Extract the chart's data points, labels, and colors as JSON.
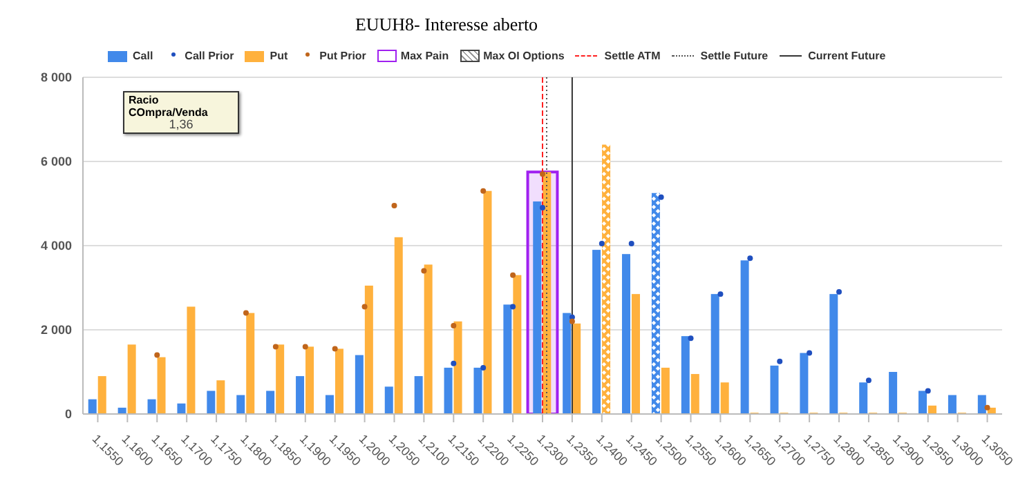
{
  "chart_data": {
    "type": "bar",
    "title": "EUUH8- Interesse aberto",
    "categories": [
      "1,1550",
      "1,1600",
      "1,1650",
      "1,1700",
      "1,1750",
      "1,1800",
      "1,1850",
      "1,1900",
      "1,1950",
      "1,2000",
      "1,2050",
      "1,2100",
      "1,2150",
      "1,2200",
      "1,2250",
      "1,2300",
      "1,2350",
      "1,2400",
      "1,2450",
      "1,2500",
      "1,2550",
      "1,2600",
      "1,2650",
      "1,2700",
      "1,2750",
      "1,2800",
      "1,2850",
      "1,2900",
      "1,2950",
      "1,3000",
      "1,3050"
    ],
    "series": [
      {
        "name": "Call",
        "color": "#4189ea",
        "values": [
          350,
          150,
          350,
          250,
          550,
          450,
          550,
          900,
          450,
          1400,
          650,
          900,
          1100,
          1100,
          2600,
          5050,
          2400,
          3900,
          3800,
          5250,
          1850,
          2850,
          3650,
          1150,
          1450,
          2850,
          750,
          1000,
          550,
          450,
          450
        ]
      },
      {
        "name": "Call Prior",
        "type": "scatter",
        "color": "#1f4fbf",
        "values": [
          null,
          null,
          null,
          null,
          null,
          null,
          null,
          null,
          null,
          null,
          null,
          null,
          1200,
          1100,
          2550,
          4900,
          2300,
          4050,
          4050,
          5150,
          1800,
          2850,
          3700,
          1250,
          1450,
          2900,
          800,
          null,
          550,
          null,
          null
        ]
      },
      {
        "name": "Put",
        "color": "#ffb13d",
        "values": [
          900,
          1650,
          1350,
          2550,
          800,
          2400,
          1650,
          1600,
          1550,
          3050,
          4200,
          3550,
          2200,
          5300,
          3300,
          5750,
          2150,
          6400,
          2850,
          1100,
          950,
          750,
          30,
          30,
          30,
          30,
          30,
          30,
          200,
          30,
          150
        ]
      },
      {
        "name": "Put Prior",
        "type": "scatter",
        "color": "#c0651b",
        "values": [
          null,
          null,
          1400,
          null,
          null,
          2400,
          1600,
          1600,
          1550,
          2550,
          4950,
          3400,
          2100,
          5300,
          3300,
          5700,
          2200,
          null,
          null,
          null,
          null,
          null,
          null,
          null,
          null,
          null,
          null,
          null,
          null,
          null,
          150
        ]
      }
    ],
    "ref_lines": [
      {
        "axis": "x",
        "value": "1,2300",
        "label": "Settle ATM",
        "color": "#ff2020",
        "line_style": "dashed"
      },
      {
        "axis": "x",
        "value": "1,2300",
        "label": "Settle Future",
        "color": "#555555",
        "line_style": "dotted"
      },
      {
        "axis": "x",
        "value": "1,2350",
        "label": "Current Future",
        "color": "#333333",
        "line_style": "solid"
      }
    ],
    "bands": [
      {
        "axis": "x",
        "from": "1,2300",
        "to": "1,2300",
        "label": "Max Pain",
        "color": "#a020f0"
      }
    ],
    "annotations": [
      "Max OI Options",
      "Racio COmpra/Venda",
      "1,36"
    ],
    "ylim": [
      0,
      8000
    ],
    "yticks": [
      {
        "value": 0,
        "label": "0"
      },
      {
        "value": 2000,
        "label": "2 000"
      },
      {
        "value": 4000,
        "label": "4 000"
      },
      {
        "value": 6000,
        "label": "6 000"
      },
      {
        "value": 8000,
        "label": "8 000"
      }
    ],
    "grid": "y",
    "legend": "top",
    "marker": "circle"
  }
}
